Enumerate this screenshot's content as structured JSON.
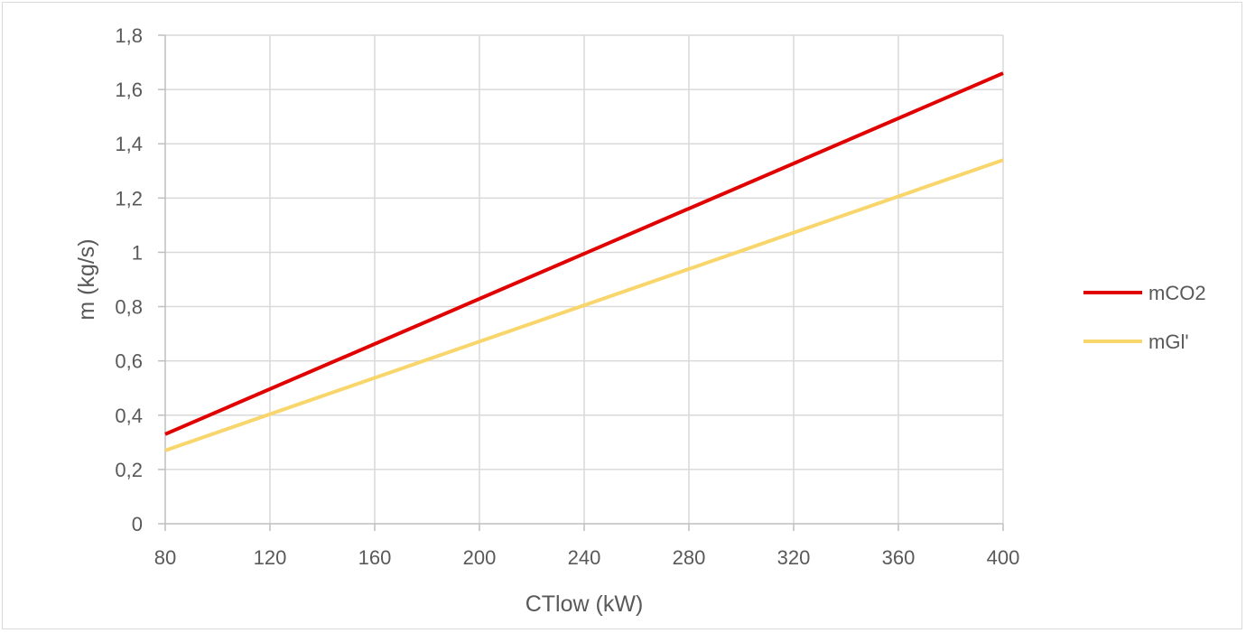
{
  "chart_data": {
    "type": "line",
    "xlabel": "CTlow (kW)",
    "ylabel": "m (kg/s)",
    "xlim": [
      80,
      400
    ],
    "ylim": [
      0,
      1.8
    ],
    "x_ticks": [
      "80",
      "120",
      "160",
      "200",
      "240",
      "280",
      "320",
      "360",
      "400"
    ],
    "y_ticks": [
      "0",
      "0,2",
      "0,4",
      "0,6",
      "0,8",
      "1",
      "1,2",
      "1,4",
      "1,6",
      "1,8"
    ],
    "grid": true,
    "legend_position": "right",
    "series": [
      {
        "name": "mCO2",
        "color": "#e00000",
        "x": [
          80,
          400
        ],
        "y": [
          0.33,
          1.66
        ]
      },
      {
        "name": "mGl'",
        "color": "#f9d66b",
        "x": [
          80,
          400
        ],
        "y": [
          0.27,
          1.34
        ]
      }
    ]
  }
}
